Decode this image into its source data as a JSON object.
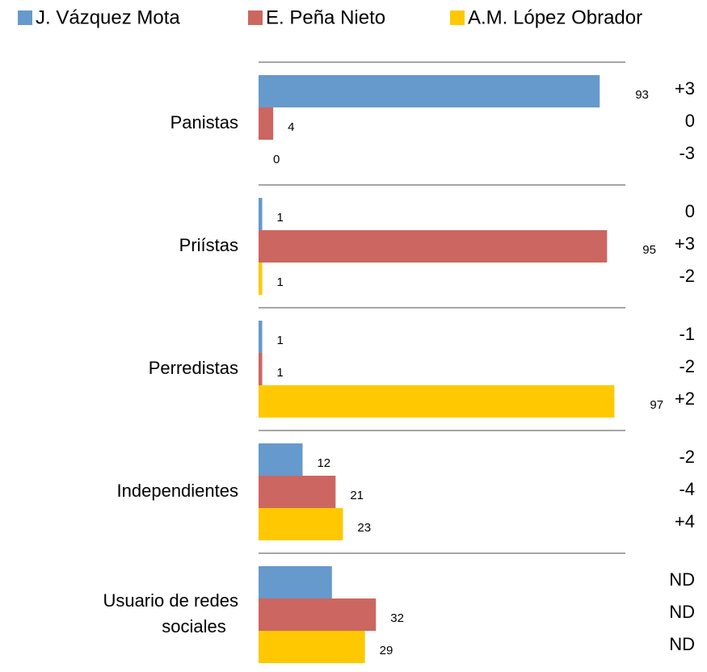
{
  "chart_data": {
    "type": "bar",
    "orientation": "horizontal",
    "categories": [
      "Panistas",
      "Priístas",
      "Perredistas",
      "Independientes",
      "Usuario de redes sociales"
    ],
    "series": [
      {
        "name": "J. Vázquez Mota",
        "color": "#6699cc",
        "values": [
          93,
          1,
          1,
          12,
          20
        ],
        "value_labels": [
          "93",
          "1",
          "1",
          "12",
          null
        ],
        "changes": [
          "+3",
          "0",
          "-1",
          "-2",
          "ND"
        ]
      },
      {
        "name": "E. Peña Nieto",
        "color": "#cc6660",
        "values": [
          4,
          95,
          1,
          21,
          32
        ],
        "changes": [
          "0",
          "+3",
          "-2",
          "-4",
          "ND"
        ]
      },
      {
        "name": "A.M. López Obrador",
        "color": "#ffc800",
        "values": [
          0,
          1,
          97,
          23,
          29
        ],
        "changes": [
          "-3",
          "-2",
          "+2",
          "+4",
          "ND"
        ]
      }
    ],
    "xlim": [
      0,
      100
    ],
    "legend": "top"
  }
}
